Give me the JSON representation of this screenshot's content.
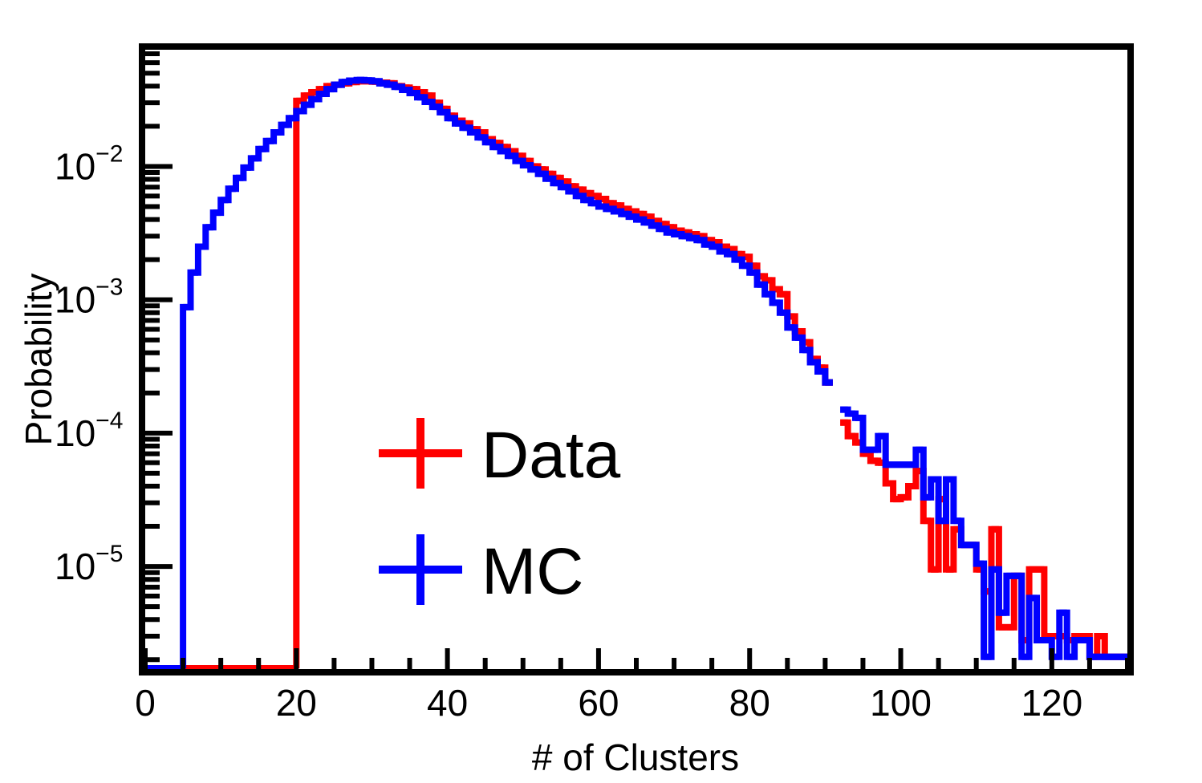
{
  "chart_data": {
    "type": "line",
    "title": "",
    "xlabel": "# of Clusters",
    "ylabel": "Probability",
    "xlim": [
      0,
      130
    ],
    "ylim": [
      1.7e-06,
      0.075
    ],
    "yscale": "log",
    "grid": false,
    "legend_position": "center-left",
    "x_ticks": [
      0,
      20,
      40,
      60,
      80,
      100,
      120
    ],
    "x_tick_labels": [
      "0",
      "20",
      "40",
      "60",
      "80",
      "100",
      "120"
    ],
    "y_ticks": [
      0.01,
      0.001,
      0.0001,
      1e-05
    ],
    "y_tick_labels": [
      {
        "base": "10",
        "exp": "−2"
      },
      {
        "base": "10",
        "exp": "−3"
      },
      {
        "base": "10",
        "exp": "−4"
      },
      {
        "base": "10",
        "exp": "−5"
      }
    ],
    "bin_width": 1,
    "series": [
      {
        "name": "Data",
        "color": "#ff0000",
        "bins": [
          [
            20,
            0.031
          ],
          [
            21,
            0.034
          ],
          [
            22,
            0.036
          ],
          [
            23,
            0.038
          ],
          [
            24,
            0.04
          ],
          [
            25,
            0.041
          ],
          [
            26,
            0.042
          ],
          [
            27,
            0.043
          ],
          [
            28,
            0.0435
          ],
          [
            29,
            0.0435
          ],
          [
            30,
            0.0432
          ],
          [
            31,
            0.0425
          ],
          [
            32,
            0.042
          ],
          [
            33,
            0.04
          ],
          [
            34,
            0.039
          ],
          [
            35,
            0.038
          ],
          [
            36,
            0.036
          ],
          [
            37,
            0.034
          ],
          [
            38,
            0.03
          ],
          [
            39,
            0.027
          ],
          [
            40,
            0.024
          ],
          [
            41,
            0.022
          ],
          [
            42,
            0.021
          ],
          [
            43,
            0.019
          ],
          [
            44,
            0.018
          ],
          [
            45,
            0.016
          ],
          [
            46,
            0.015
          ],
          [
            47,
            0.014
          ],
          [
            48,
            0.013
          ],
          [
            49,
            0.012
          ],
          [
            50,
            0.011
          ],
          [
            51,
            0.01
          ],
          [
            52,
            0.0095
          ],
          [
            53,
            0.0088
          ],
          [
            54,
            0.0082
          ],
          [
            55,
            0.0077
          ],
          [
            56,
            0.0071
          ],
          [
            57,
            0.0067
          ],
          [
            58,
            0.0063
          ],
          [
            59,
            0.006
          ],
          [
            60,
            0.0057
          ],
          [
            61,
            0.0053
          ],
          [
            62,
            0.0051
          ],
          [
            63,
            0.0048
          ],
          [
            64,
            0.0046
          ],
          [
            65,
            0.0044
          ],
          [
            66,
            0.0042
          ],
          [
            67,
            0.0039
          ],
          [
            68,
            0.0037
          ],
          [
            69,
            0.0035
          ],
          [
            70,
            0.0033
          ],
          [
            71,
            0.0032
          ],
          [
            72,
            0.0031
          ],
          [
            73,
            0.003
          ],
          [
            74,
            0.0028
          ],
          [
            75,
            0.0027
          ],
          [
            76,
            0.0025
          ],
          [
            77,
            0.0024
          ],
          [
            78,
            0.0022
          ],
          [
            79,
            0.0021
          ],
          [
            80,
            0.0018
          ],
          [
            81,
            0.0015
          ],
          [
            82,
            0.0014
          ],
          [
            83,
            0.0012
          ],
          [
            84,
            0.0011
          ],
          [
            85,
            0.00075
          ],
          [
            86,
            0.00058
          ],
          [
            87,
            0.00048
          ],
          [
            88,
            0.00036
          ],
          [
            89,
            0.00031
          ],
          [
            90,
            0.00024
          ],
          [
            92,
            0.00012
          ],
          [
            93,
            9.5e-05
          ],
          [
            94,
            8.5e-05
          ],
          [
            95,
            7e-05
          ],
          [
            96,
            6.2e-05
          ],
          [
            97,
            6e-05
          ],
          [
            98,
            4.2e-05
          ],
          [
            99,
            3.2e-05
          ],
          [
            100,
            3.3e-05
          ],
          [
            101,
            4e-05
          ],
          [
            102,
            5.2e-05
          ],
          [
            103,
            2.2e-05
          ],
          [
            104,
            9.5e-06
          ],
          [
            105,
            3.2e-05
          ],
          [
            106,
            9.5e-06
          ],
          [
            107,
            1.9e-05
          ],
          [
            108,
            1.45e-05
          ],
          [
            109,
            1.45e-05
          ],
          [
            110,
            9.5e-06
          ],
          [
            111,
            6.5e-06
          ],
          [
            112,
            1.9e-05
          ],
          [
            113,
            3.5e-06
          ],
          [
            114,
            3.5e-06
          ],
          [
            115,
            8.5e-06
          ],
          [
            116,
            2.8e-06
          ],
          [
            117,
            9.5e-06
          ],
          [
            118,
            9.5e-06
          ],
          [
            119,
            3e-06
          ],
          [
            120,
            3e-06
          ],
          [
            121,
            3e-06
          ],
          [
            122,
            2.8e-06
          ],
          [
            123,
            3e-06
          ],
          [
            124,
            3e-06
          ],
          [
            125,
            2.1e-06
          ],
          [
            126,
            3e-06
          ],
          [
            127,
            2.1e-06
          ],
          [
            128,
            2.1e-06
          ],
          [
            129,
            2.1e-06
          ]
        ]
      },
      {
        "name": "MC",
        "color": "#0000ff",
        "bins": [
          [
            5,
            0.00088
          ],
          [
            6,
            0.0016
          ],
          [
            7,
            0.0025
          ],
          [
            8,
            0.0035
          ],
          [
            9,
            0.0045
          ],
          [
            10,
            0.0056
          ],
          [
            11,
            0.0068
          ],
          [
            12,
            0.0082
          ],
          [
            13,
            0.0098
          ],
          [
            14,
            0.0115
          ],
          [
            15,
            0.0135
          ],
          [
            16,
            0.0155
          ],
          [
            17,
            0.018
          ],
          [
            18,
            0.0205
          ],
          [
            19,
            0.023
          ],
          [
            20,
            0.026
          ],
          [
            21,
            0.029
          ],
          [
            22,
            0.032
          ],
          [
            23,
            0.035
          ],
          [
            24,
            0.038
          ],
          [
            25,
            0.041
          ],
          [
            26,
            0.043
          ],
          [
            27,
            0.044
          ],
          [
            28,
            0.0445
          ],
          [
            29,
            0.0442
          ],
          [
            30,
            0.0435
          ],
          [
            31,
            0.042
          ],
          [
            32,
            0.041
          ],
          [
            33,
            0.0395
          ],
          [
            34,
            0.0375
          ],
          [
            35,
            0.0355
          ],
          [
            36,
            0.033
          ],
          [
            37,
            0.0305
          ],
          [
            38,
            0.028
          ],
          [
            39,
            0.0255
          ],
          [
            40,
            0.023
          ],
          [
            41,
            0.021
          ],
          [
            42,
            0.0195
          ],
          [
            43,
            0.018
          ],
          [
            44,
            0.0165
          ],
          [
            45,
            0.0152
          ],
          [
            46,
            0.014
          ],
          [
            47,
            0.013
          ],
          [
            48,
            0.012
          ],
          [
            49,
            0.011
          ],
          [
            50,
            0.0102
          ],
          [
            51,
            0.0095
          ],
          [
            52,
            0.0088
          ],
          [
            53,
            0.0081
          ],
          [
            54,
            0.0075
          ],
          [
            55,
            0.007
          ],
          [
            56,
            0.0065
          ],
          [
            57,
            0.006
          ],
          [
            58,
            0.0056
          ],
          [
            59,
            0.0053
          ],
          [
            60,
            0.005
          ],
          [
            61,
            0.0048
          ],
          [
            62,
            0.0046
          ],
          [
            63,
            0.0044
          ],
          [
            64,
            0.0042
          ],
          [
            65,
            0.004
          ],
          [
            66,
            0.0038
          ],
          [
            67,
            0.0036
          ],
          [
            68,
            0.0034
          ],
          [
            69,
            0.0032
          ],
          [
            70,
            0.0031
          ],
          [
            71,
            0.003
          ],
          [
            72,
            0.0029
          ],
          [
            73,
            0.0028
          ],
          [
            74,
            0.0026
          ],
          [
            75,
            0.0025
          ],
          [
            76,
            0.0023
          ],
          [
            77,
            0.0022
          ],
          [
            78,
            0.002
          ],
          [
            79,
            0.0018
          ],
          [
            80,
            0.0016
          ],
          [
            81,
            0.0013
          ],
          [
            82,
            0.0011
          ],
          [
            83,
            0.00095
          ],
          [
            84,
            0.0008
          ],
          [
            85,
            0.00062
          ],
          [
            86,
            0.00052
          ],
          [
            87,
            0.00042
          ],
          [
            88,
            0.00034
          ],
          [
            89,
            0.00029
          ],
          [
            90,
            0.00024
          ],
          [
            92,
            0.00015
          ],
          [
            93,
            0.00014
          ],
          [
            94,
            0.00013
          ],
          [
            95,
            7.5e-05
          ],
          [
            96,
            7.5e-05
          ],
          [
            97,
            9.5e-05
          ],
          [
            98,
            5.8e-05
          ],
          [
            99,
            5.8e-05
          ],
          [
            100,
            5.8e-05
          ],
          [
            101,
            5.8e-05
          ],
          [
            102,
            7.5e-05
          ],
          [
            103,
            3.3e-05
          ],
          [
            104,
            4.5e-05
          ],
          [
            105,
            2.2e-05
          ],
          [
            106,
            4.5e-05
          ],
          [
            107,
            2.2e-05
          ],
          [
            108,
            1.45e-05
          ],
          [
            109,
            1.45e-05
          ],
          [
            110,
            1.05e-05
          ],
          [
            111,
            2.1e-06
          ],
          [
            112,
            9.5e-06
          ],
          [
            113,
            4.5e-06
          ],
          [
            114,
            8.5e-06
          ],
          [
            115,
            8.5e-06
          ],
          [
            116,
            2.1e-06
          ],
          [
            117,
            5.8e-06
          ],
          [
            118,
            2.8e-06
          ],
          [
            119,
            2.8e-06
          ],
          [
            120,
            2.1e-06
          ],
          [
            121,
            4.5e-06
          ],
          [
            122,
            2.1e-06
          ],
          [
            123,
            2.8e-06
          ],
          [
            124,
            2.8e-06
          ],
          [
            125,
            2.1e-06
          ],
          [
            126,
            2.1e-06
          ],
          [
            127,
            2.1e-06
          ],
          [
            128,
            2.1e-06
          ],
          [
            129,
            2.1e-06
          ]
        ]
      }
    ]
  }
}
